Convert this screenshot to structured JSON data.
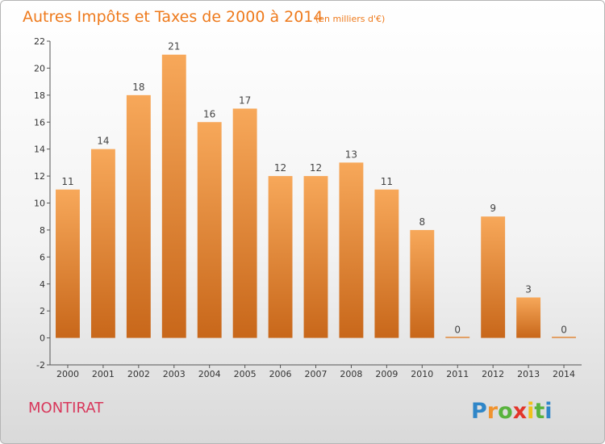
{
  "chart_data": {
    "type": "bar",
    "title": "Autres Impôts et Taxes de 2000 à 2014",
    "subtitle": "(en milliers d'€)",
    "categories": [
      "2000",
      "2001",
      "2002",
      "2003",
      "2004",
      "2005",
      "2006",
      "2007",
      "2008",
      "2009",
      "2010",
      "2011",
      "2012",
      "2013",
      "2014"
    ],
    "values": [
      11,
      14,
      18,
      21,
      16,
      17,
      12,
      12,
      13,
      11,
      8,
      0,
      9,
      3,
      0
    ],
    "ylim": [
      -2,
      22
    ],
    "yticks": [
      -2,
      0,
      2,
      4,
      6,
      8,
      10,
      12,
      14,
      16,
      18,
      20,
      22
    ],
    "grid": false,
    "bar_color": "#f0932f",
    "bar_color_light": "#f7a85a",
    "bar_color_dark": "#c8671a"
  },
  "footer": {
    "commune": "MONTIRAT",
    "logo_letters": [
      "P",
      "r",
      "o",
      "x",
      "i",
      "t",
      "i"
    ],
    "logo_colors": [
      "#2f86c8",
      "#f0932f",
      "#59b33d",
      "#e2352a",
      "#f0c21a",
      "#59b33d",
      "#2f86c8"
    ]
  }
}
